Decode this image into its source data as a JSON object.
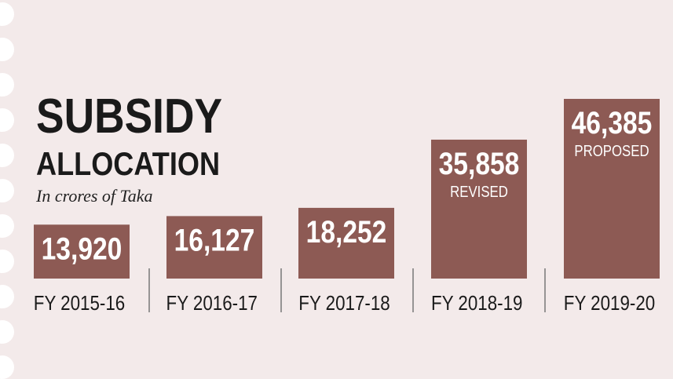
{
  "chart_data": {
    "type": "bar",
    "title": "SUBSIDY",
    "subtitle": "ALLOCATION",
    "unit_note": "In crores of Taka",
    "categories": [
      "FY 2015-16",
      "FY 2016-17",
      "FY 2017-18",
      "FY 2018-19",
      "FY 2019-20"
    ],
    "values": [
      13920,
      16127,
      18252,
      35858,
      46385
    ],
    "value_labels": [
      "13,920",
      "16,127",
      "18,252",
      "35,858",
      "46,385"
    ],
    "annotations": [
      "",
      "",
      "",
      "REVISED",
      "PROPOSED"
    ],
    "ylim": [
      0,
      46385
    ],
    "grid": false,
    "legend": "none"
  },
  "colors": {
    "bar": "#8d5a54",
    "background": "#f3eaea",
    "text": "#1a1a1a",
    "bar_label": "#ffffff",
    "divider": "#777777"
  }
}
